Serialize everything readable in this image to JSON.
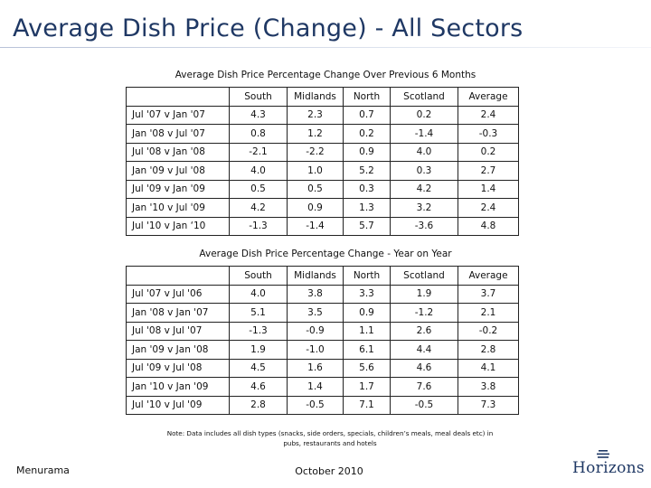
{
  "page": {
    "title": "Average Dish Price (Change) - All Sectors",
    "note_line1": "Note: Data includes all dish types (snacks, side orders, specials, children’s meals, meal deals etc) in",
    "note_line2": "pubs, restaurants and hotels",
    "footer_left": "Menurama",
    "footer_center": "October 2010",
    "logo_text": "Horizons",
    "colors": {
      "title": "#1f3864",
      "logo": "#1f3864"
    }
  },
  "table_6m": {
    "caption": "Average Dish Price Percentage Change Over Previous 6 Months",
    "columns": [
      "",
      "South",
      "Midlands",
      "North",
      "Scotland",
      "Average"
    ],
    "rows": [
      {
        "label": "Jul '07 v Jan '07",
        "values": [
          "4.3",
          "2.3",
          "0.7",
          "0.2",
          "2.4"
        ]
      },
      {
        "label": "Jan '08 v Jul '07",
        "values": [
          "0.8",
          "1.2",
          "0.2",
          "-1.4",
          "-0.3"
        ]
      },
      {
        "label": "Jul '08 v Jan '08",
        "values": [
          "-2.1",
          "-2.2",
          "0.9",
          "4.0",
          "0.2"
        ]
      },
      {
        "label": "Jan '09 v Jul '08",
        "values": [
          "4.0",
          "1.0",
          "5.2",
          "0.3",
          "2.7"
        ]
      },
      {
        "label": "Jul '09 v Jan '09",
        "values": [
          "0.5",
          "0.5",
          "0.3",
          "4.2",
          "1.4"
        ]
      },
      {
        "label": "Jan '10 v Jul '09",
        "values": [
          "4.2",
          "0.9",
          "1.3",
          "3.2",
          "2.4"
        ]
      },
      {
        "label": "Jul '10 v Jan ‘10",
        "values": [
          "-1.3",
          "-1.4",
          "5.7",
          "-3.6",
          "4.8"
        ]
      }
    ]
  },
  "table_yoy": {
    "caption": "Average Dish Price Percentage Change - Year on Year",
    "columns": [
      "",
      "South",
      "Midlands",
      "North",
      "Scotland",
      "Average"
    ],
    "rows": [
      {
        "label": "Jul '07 v Jul '06",
        "values": [
          "4.0",
          "3.8",
          "3.3",
          "1.9",
          "3.7"
        ]
      },
      {
        "label": "Jan '08 v Jan '07",
        "values": [
          "5.1",
          "3.5",
          "0.9",
          "-1.2",
          "2.1"
        ]
      },
      {
        "label": "Jul '08 v Jul '07",
        "values": [
          "-1.3",
          "-0.9",
          "1.1",
          "2.6",
          "-0.2"
        ]
      },
      {
        "label": "Jan '09 v Jan '08",
        "values": [
          "1.9",
          "-1.0",
          "6.1",
          "4.4",
          "2.8"
        ]
      },
      {
        "label": "Jul '09 v Jul '08",
        "values": [
          "4.5",
          "1.6",
          "5.6",
          "4.6",
          "4.1"
        ]
      },
      {
        "label": "Jan '10 v Jan '09",
        "values": [
          "4.6",
          "1.4",
          "1.7",
          "7.6",
          "3.8"
        ]
      },
      {
        "label": "Jul '10 v Jul '09",
        "values": [
          "2.8",
          "-0.5",
          "7.1",
          "-0.5",
          "7.3"
        ]
      }
    ]
  }
}
